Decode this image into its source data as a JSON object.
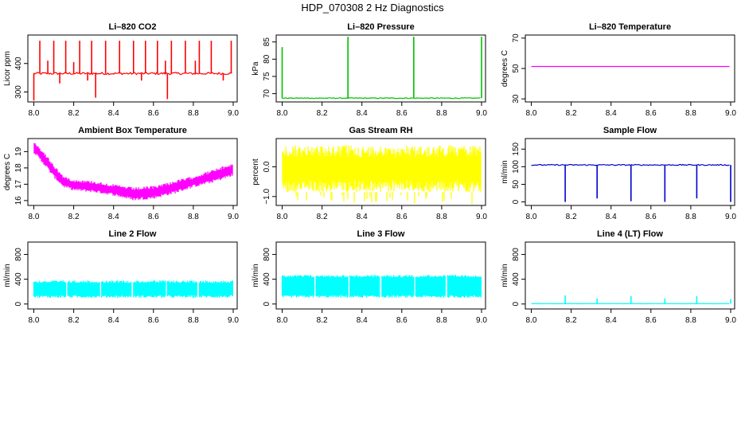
{
  "title": "HDP_070308  2 Hz Diagnostics",
  "chart_data": [
    {
      "type": "line",
      "title": "Li–820 CO2",
      "ylabel": "Licor ppm",
      "xlim": [
        7.97,
        9.02
      ],
      "ylim": [
        265,
        500
      ],
      "xticks": [
        "8.0",
        "8.2",
        "8.4",
        "8.6",
        "8.8",
        "9.0"
      ],
      "xtick_values": [
        8.0,
        8.2,
        8.4,
        8.6,
        8.8,
        9.0
      ],
      "yticks": [
        "300",
        "400"
      ],
      "ytick_values": [
        300,
        400
      ],
      "color": "#ff0000",
      "series": [
        {
          "name": "CO2",
          "pattern": "baseline_spikes",
          "baseline": 365,
          "noise": 4,
          "spikes": [
            {
              "x": 8.03,
              "y": 480
            },
            {
              "x": 8.07,
              "y": 410
            },
            {
              "x": 8.1,
              "y": 480
            },
            {
              "x": 8.16,
              "y": 480
            },
            {
              "x": 8.2,
              "y": 405
            },
            {
              "x": 8.23,
              "y": 480
            },
            {
              "x": 8.29,
              "y": 480
            },
            {
              "x": 8.31,
              "y": 280
            },
            {
              "x": 8.36,
              "y": 480
            },
            {
              "x": 8.43,
              "y": 480
            },
            {
              "x": 8.5,
              "y": 480
            },
            {
              "x": 8.56,
              "y": 480
            },
            {
              "x": 8.62,
              "y": 480
            },
            {
              "x": 8.66,
              "y": 410
            },
            {
              "x": 8.69,
              "y": 480
            },
            {
              "x": 8.76,
              "y": 480
            },
            {
              "x": 8.81,
              "y": 410
            },
            {
              "x": 8.83,
              "y": 480
            },
            {
              "x": 8.89,
              "y": 480
            },
            {
              "x": 8.99,
              "y": 480
            },
            {
              "x": 8.0,
              "y": 270
            },
            {
              "x": 8.13,
              "y": 330
            },
            {
              "x": 8.27,
              "y": 340
            },
            {
              "x": 8.54,
              "y": 340
            },
            {
              "x": 8.67,
              "y": 275
            },
            {
              "x": 8.95,
              "y": 340
            }
          ]
        }
      ]
    },
    {
      "type": "line",
      "title": "Li–820 Pressure",
      "ylabel": "kPa",
      "xlim": [
        7.97,
        9.02
      ],
      "ylim": [
        67.6,
        87
      ],
      "xticks": [
        "8.0",
        "8.2",
        "8.4",
        "8.6",
        "8.8",
        "9.0"
      ],
      "xtick_values": [
        8.0,
        8.2,
        8.4,
        8.6,
        8.8,
        9.0
      ],
      "yticks": [
        "70",
        "75",
        "80",
        "85"
      ],
      "ytick_values": [
        70,
        75,
        80,
        85
      ],
      "color": "#00c000",
      "series": [
        {
          "name": "Pressure",
          "pattern": "baseline_spikes",
          "baseline": 68.7,
          "noise": 0.12,
          "spikes": [
            {
              "x": 8.0,
              "y": 83.5
            },
            {
              "x": 8.33,
              "y": 86.5
            },
            {
              "x": 8.66,
              "y": 86.5
            },
            {
              "x": 9.0,
              "y": 86.5
            }
          ]
        }
      ]
    },
    {
      "type": "line",
      "title": "Li–820 Temperature",
      "ylabel": "degrees C",
      "xlim": [
        7.97,
        9.02
      ],
      "ylim": [
        28,
        72
      ],
      "xticks": [
        "8.0",
        "8.2",
        "8.4",
        "8.6",
        "8.8",
        "9.0"
      ],
      "xtick_values": [
        8.0,
        8.2,
        8.4,
        8.6,
        8.8,
        9.0
      ],
      "yticks": [
        "30",
        "50",
        "70"
      ],
      "ytick_values": [
        30,
        50,
        70
      ],
      "color": "#ff00ff",
      "series": [
        {
          "name": "Temperature",
          "pattern": "baseline_spikes",
          "baseline": 51.3,
          "noise": 0,
          "spikes": []
        }
      ]
    },
    {
      "type": "line",
      "title": "Ambient Box Temperature",
      "ylabel": "degrees C",
      "xlim": [
        7.97,
        9.02
      ],
      "ylim": [
        15.7,
        19.8
      ],
      "xticks": [
        "8.0",
        "8.2",
        "8.4",
        "8.6",
        "8.8",
        "9.0"
      ],
      "xtick_values": [
        8.0,
        8.2,
        8.4,
        8.6,
        8.8,
        9.0
      ],
      "yticks": [
        "16",
        "17",
        "18",
        "19"
      ],
      "ytick_values": [
        16,
        17,
        18,
        19
      ],
      "color": "#ff00ff",
      "series": [
        {
          "name": "Box temperature",
          "pattern": "band",
          "x": [
            8.0,
            8.05,
            8.1,
            8.15,
            8.2,
            8.3,
            8.4,
            8.5,
            8.6,
            8.7,
            8.8,
            8.9,
            9.0
          ],
          "lo": [
            18.9,
            18.2,
            17.4,
            16.8,
            16.6,
            16.5,
            16.3,
            16.0,
            16.1,
            16.4,
            16.8,
            17.1,
            17.5
          ],
          "hi": [
            19.6,
            19.0,
            18.2,
            17.5,
            17.3,
            17.2,
            17.0,
            16.8,
            16.9,
            17.2,
            17.5,
            17.9,
            18.3
          ]
        }
      ]
    },
    {
      "type": "line",
      "title": "Gas Stream RH",
      "ylabel": "percent",
      "xlim": [
        7.97,
        9.02
      ],
      "ylim": [
        -1.3,
        0.95
      ],
      "xticks": [
        "8.0",
        "8.2",
        "8.4",
        "8.6",
        "8.8",
        "9.0"
      ],
      "xtick_values": [
        8.0,
        8.2,
        8.4,
        8.6,
        8.8,
        9.0
      ],
      "yticks": [
        "−1.0",
        "0.0"
      ],
      "ytick_values": [
        -1.0,
        0.0
      ],
      "color": "#ffff00",
      "series": [
        {
          "name": "RH",
          "pattern": "band",
          "x": [
            8.0,
            9.0
          ],
          "lo": [
            -0.85,
            -0.85
          ],
          "hi": [
            0.72,
            0.72
          ]
        }
      ]
    },
    {
      "type": "line",
      "title": "Sample Flow",
      "ylabel": "ml/min",
      "xlim": [
        7.97,
        9.02
      ],
      "ylim": [
        -10,
        180
      ],
      "xticks": [
        "8.0",
        "8.2",
        "8.4",
        "8.6",
        "8.8",
        "9.0"
      ],
      "xtick_values": [
        8.0,
        8.2,
        8.4,
        8.6,
        8.8,
        9.0
      ],
      "yticks": [
        "0",
        "50",
        "100",
        "150"
      ],
      "ytick_values": [
        0,
        50,
        100,
        150
      ],
      "color": "#0000cc",
      "series": [
        {
          "name": "Sample flow",
          "pattern": "baseline_spikes",
          "baseline": 105,
          "noise": 1.5,
          "spikes": [
            {
              "x": 8.17,
              "y": 0
            },
            {
              "x": 8.33,
              "y": 10
            },
            {
              "x": 8.5,
              "y": 2
            },
            {
              "x": 8.67,
              "y": 0
            },
            {
              "x": 8.83,
              "y": 10
            },
            {
              "x": 9.0,
              "y": 0
            }
          ]
        }
      ]
    },
    {
      "type": "line",
      "title": "Line 2 Flow",
      "ylabel": "ml/min",
      "xlim": [
        7.97,
        9.02
      ],
      "ylim": [
        -80,
        1000
      ],
      "xticks": [
        "8.0",
        "8.2",
        "8.4",
        "8.6",
        "8.8",
        "9.0"
      ],
      "xtick_values": [
        8.0,
        8.2,
        8.4,
        8.6,
        8.8,
        9.0
      ],
      "yticks": [
        "0",
        "400",
        "800"
      ],
      "ytick_values": [
        0,
        400,
        800
      ],
      "color": "#00ffff",
      "series": [
        {
          "name": "Line 2",
          "pattern": "blocks",
          "segments": [
            [
              8.0,
              8.16
            ],
            [
              8.17,
              8.33
            ],
            [
              8.34,
              8.49
            ],
            [
              8.5,
              8.66
            ],
            [
              8.67,
              8.82
            ],
            [
              8.83,
              9.0
            ]
          ],
          "lo": 100,
          "hi": 380
        }
      ]
    },
    {
      "type": "line",
      "title": "Line 3 Flow",
      "ylabel": "ml/min",
      "xlim": [
        7.97,
        9.02
      ],
      "ylim": [
        -80,
        1000
      ],
      "xticks": [
        "8.0",
        "8.2",
        "8.4",
        "8.6",
        "8.8",
        "9.0"
      ],
      "xtick_values": [
        8.0,
        8.2,
        8.4,
        8.6,
        8.8,
        9.0
      ],
      "yticks": [
        "0",
        "400",
        "800"
      ],
      "ytick_values": [
        0,
        400,
        800
      ],
      "color": "#00ffff",
      "series": [
        {
          "name": "Line 3",
          "pattern": "blocks",
          "segments": [
            [
              8.0,
              8.16
            ],
            [
              8.17,
              8.33
            ],
            [
              8.34,
              8.49
            ],
            [
              8.5,
              8.66
            ],
            [
              8.67,
              8.82
            ],
            [
              8.83,
              9.0
            ]
          ],
          "lo": 100,
          "hi": 470
        }
      ]
    },
    {
      "type": "line",
      "title": "Line 4 (LT) Flow",
      "ylabel": "ml/min",
      "xlim": [
        7.97,
        9.02
      ],
      "ylim": [
        -80,
        1000
      ],
      "xticks": [
        "8.0",
        "8.2",
        "8.4",
        "8.6",
        "8.8",
        "9.0"
      ],
      "xtick_values": [
        8.0,
        8.2,
        8.4,
        8.6,
        8.8,
        9.0
      ],
      "yticks": [
        "0",
        "400",
        "800"
      ],
      "ytick_values": [
        0,
        400,
        800
      ],
      "color": "#00ffff",
      "series": [
        {
          "name": "Line 4",
          "pattern": "baseline_spikes",
          "baseline": 5,
          "noise": 1,
          "spikes": [
            {
              "x": 8.17,
              "y": 140
            },
            {
              "x": 8.33,
              "y": 90
            },
            {
              "x": 8.5,
              "y": 130
            },
            {
              "x": 8.67,
              "y": 90
            },
            {
              "x": 8.83,
              "y": 130
            },
            {
              "x": 9.0,
              "y": 80
            }
          ]
        }
      ]
    }
  ]
}
